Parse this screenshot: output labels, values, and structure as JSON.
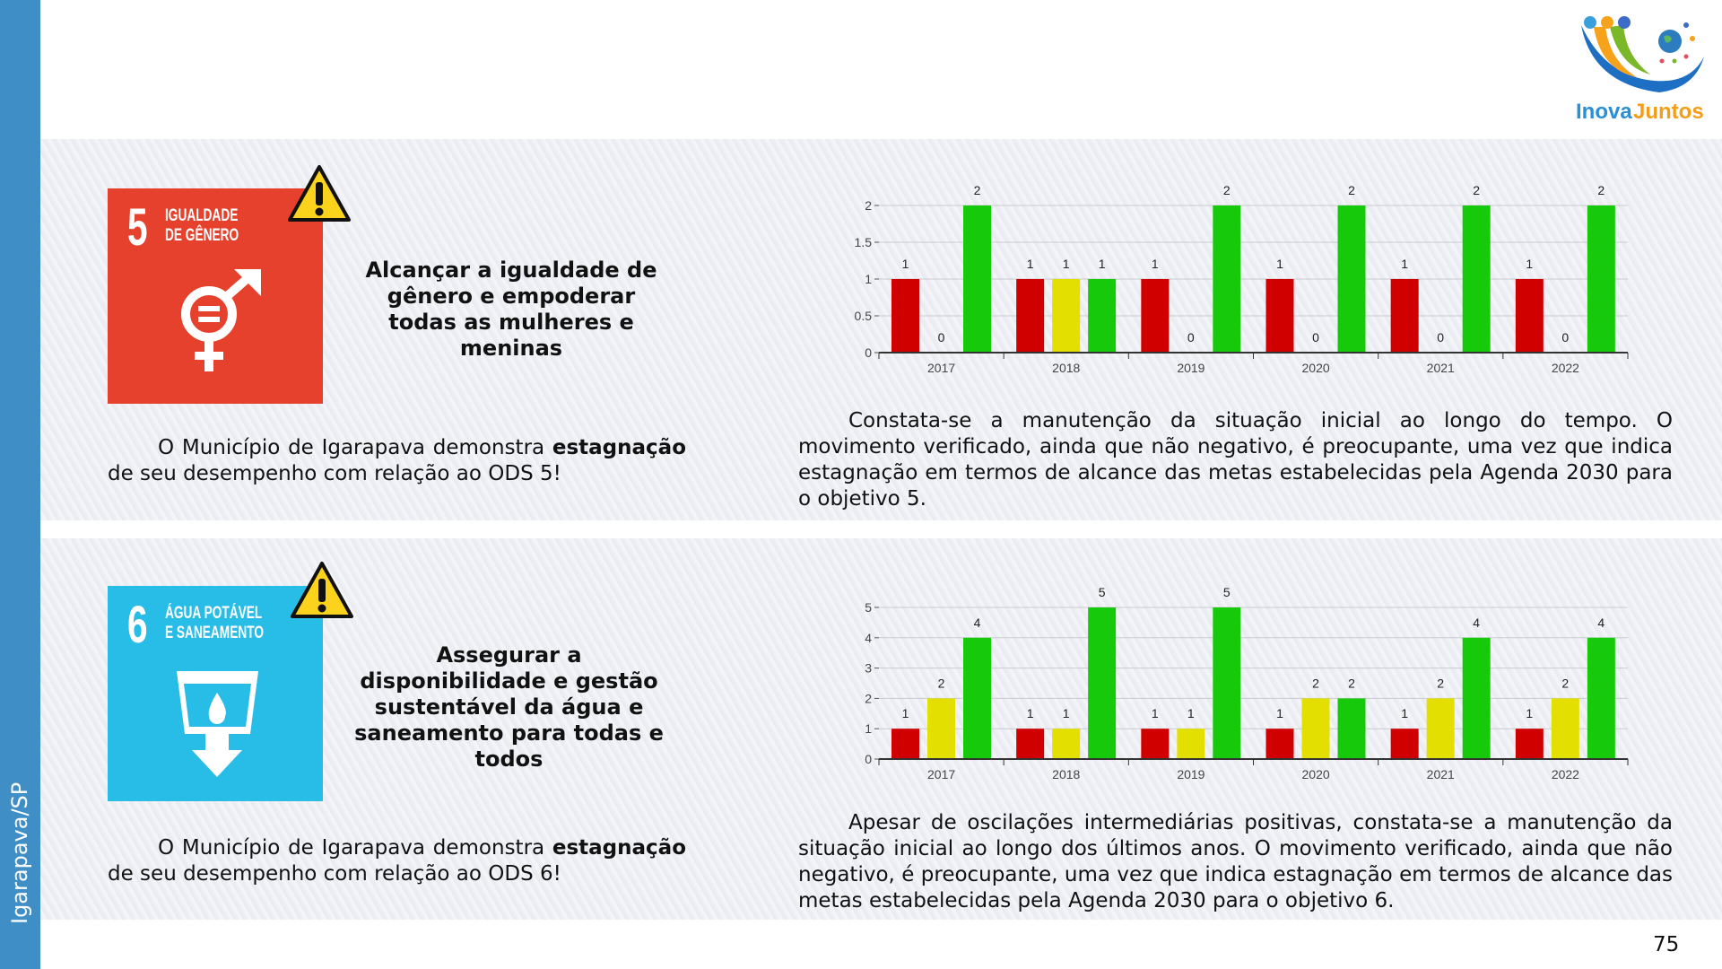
{
  "sidebar": {
    "label": "Igarapava/SP"
  },
  "logo": {
    "text_a": "Inova",
    "text_b": "Juntos"
  },
  "page_number": "75",
  "sections": [
    {
      "sdg_number": "5",
      "sdg_title_1": "IGUALDADE",
      "sdg_title_2": "DE GÊNERO",
      "sdg_color": "#e5412d",
      "heading": "Alcançar a igualdade de gênero e empoderar todas as mulheres e meninas",
      "summary_pre": "O Município de Igarapava demonstra ",
      "summary_bold": "estagnação",
      "summary_post": " de seu desempenho com relação ao ODS 5!",
      "analysis": "Constata-se a manutenção da situação inicial ao longo do tempo. O movimento verificado, ainda que não negativo, é preocupante, uma vez que indica estagnação em termos de alcance das metas estabelecidas pela Agenda 2030 para o objetivo 5."
    },
    {
      "sdg_number": "6",
      "sdg_title_1": "ÁGUA POTÁVEL",
      "sdg_title_2": "E SANEAMENTO",
      "sdg_color": "#28bde6",
      "heading": "Assegurar a disponibilidade e gestão sustentável da água e saneamento para todas e todos",
      "summary_pre": "O Município de Igarapava demonstra ",
      "summary_bold": "estagnação",
      "summary_post": " de seu desempenho com relação ao ODS 6!",
      "analysis": "Apesar de oscilações intermediárias positivas, constata-se a manutenção da situação inicial ao longo dos últimos anos. O movimento verificado, ainda que não negativo, é preocupante, uma vez que indica estagnação em termos de alcance das metas estabelecidas pela Agenda 2030 para o objetivo 6."
    }
  ],
  "chart_data": [
    {
      "type": "bar",
      "title": "",
      "categories": [
        "2017",
        "2018",
        "2019",
        "2020",
        "2021",
        "2022"
      ],
      "ylim": [
        0,
        2
      ],
      "yticks": [
        "0",
        "0.5",
        "1",
        "1.5",
        "2"
      ],
      "ytick_values": [
        0,
        0.5,
        1,
        1.5,
        2
      ],
      "series": [
        {
          "name": "red",
          "color": "#d00000",
          "values": [
            1,
            1,
            1,
            1,
            1,
            1
          ]
        },
        {
          "name": "yellow",
          "color": "#e3df00",
          "values": [
            0,
            1,
            0,
            0,
            0,
            0
          ]
        },
        {
          "name": "green",
          "color": "#17c90b",
          "values": [
            2,
            1,
            2,
            2,
            2,
            2
          ]
        }
      ]
    },
    {
      "type": "bar",
      "title": "",
      "categories": [
        "2017",
        "2018",
        "2019",
        "2020",
        "2021",
        "2022"
      ],
      "ylim": [
        0,
        5
      ],
      "yticks": [
        "0",
        "1",
        "2",
        "3",
        "4",
        "5"
      ],
      "ytick_values": [
        0,
        1,
        2,
        3,
        4,
        5
      ],
      "series": [
        {
          "name": "red",
          "color": "#d00000",
          "values": [
            1,
            1,
            1,
            1,
            1,
            1
          ]
        },
        {
          "name": "yellow",
          "color": "#e3df00",
          "values": [
            2,
            1,
            1,
            2,
            2,
            2
          ]
        },
        {
          "name": "green",
          "color": "#17c90b",
          "values": [
            4,
            5,
            5,
            2,
            4,
            4
          ]
        }
      ]
    }
  ]
}
